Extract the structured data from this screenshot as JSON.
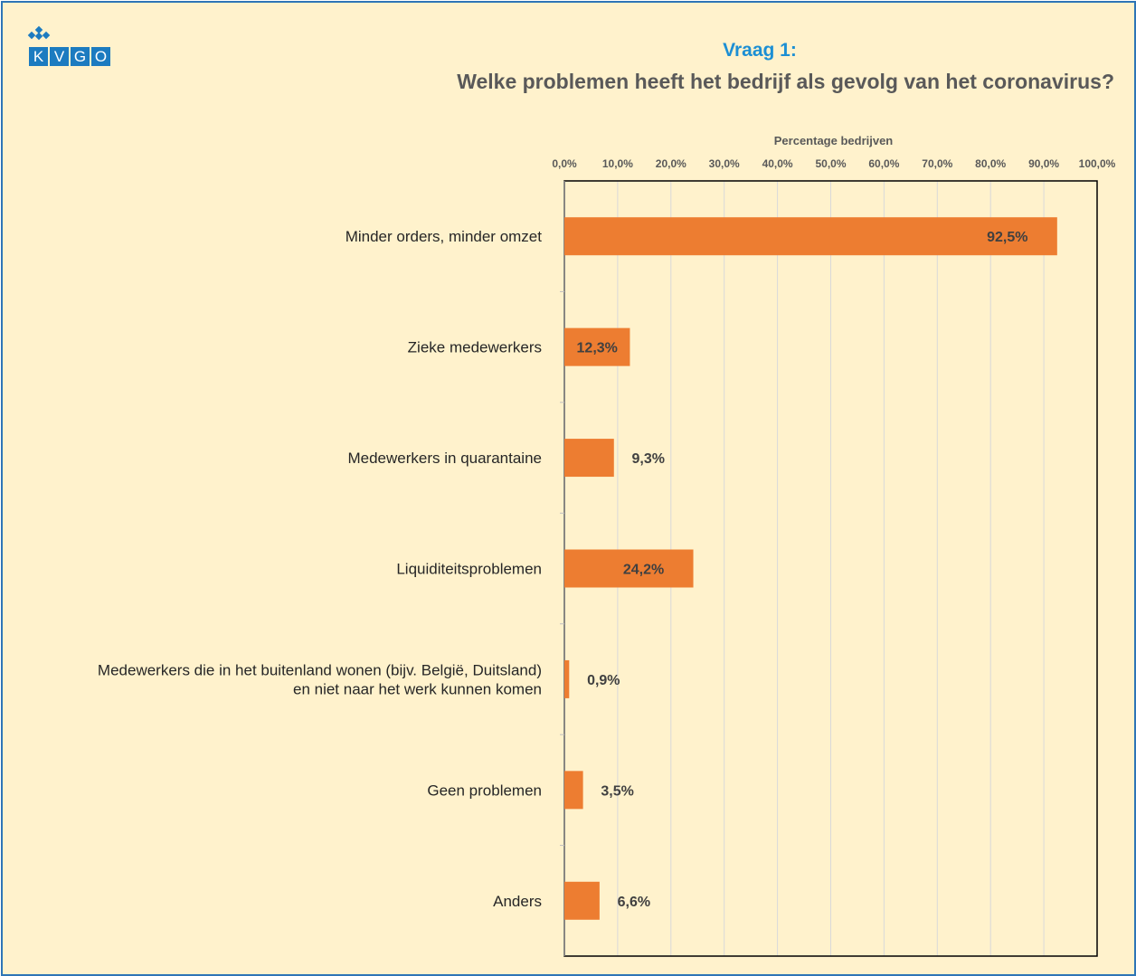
{
  "logo": {
    "text": "KVGO",
    "letters": [
      "K",
      "V",
      "G",
      "O"
    ]
  },
  "header": {
    "question_label": "Vraag 1:",
    "question_text": "Welke problemen heeft het bedrijf als gevolg van het coronavirus?"
  },
  "colors": {
    "bar": "#ED7D31",
    "frame_border": "#2E75B6",
    "background": "#FFF2CC",
    "accent": "#1C8FD4"
  },
  "chart_data": {
    "type": "bar",
    "orientation": "horizontal",
    "xlabel": "Percentage bedrijven",
    "xlim": [
      0,
      100
    ],
    "grid": true,
    "x_ticks": [
      "0,0%",
      "10,0%",
      "20,0%",
      "30,0%",
      "40,0%",
      "50,0%",
      "60,0%",
      "70,0%",
      "80,0%",
      "90,0%",
      "100,0%"
    ],
    "categories": [
      [
        "Minder orders, minder omzet"
      ],
      [
        "Zieke medewerkers"
      ],
      [
        "Medewerkers in quarantaine"
      ],
      [
        "Liquiditeitsproblemen"
      ],
      [
        "Medewerkers die in het buitenland wonen (bijv. België, Duitsland)",
        "en niet naar het werk kunnen komen"
      ],
      [
        "Geen problemen"
      ],
      [
        "Anders"
      ]
    ],
    "values": [
      92.5,
      12.3,
      9.3,
      24.2,
      0.9,
      3.5,
      6.6
    ],
    "data_labels": [
      "92,5%",
      "12,3%",
      "9,3%",
      "24,2%",
      "0,9%",
      "3,5%",
      "6,6%"
    ]
  }
}
